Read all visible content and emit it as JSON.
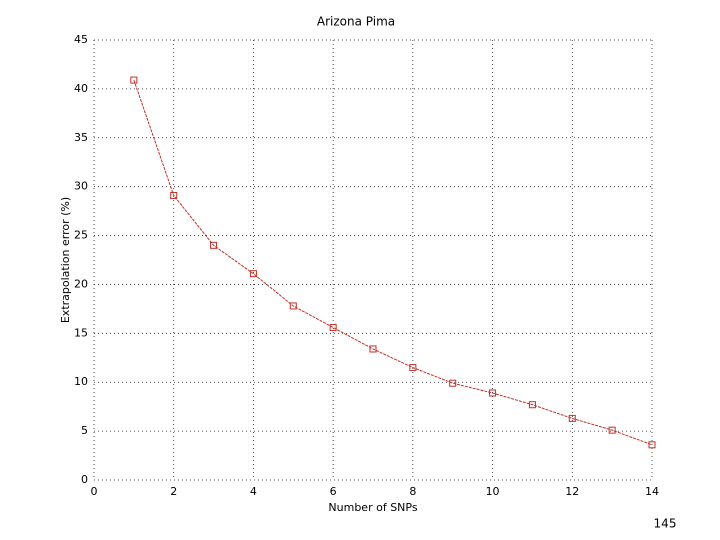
{
  "chart_data": {
    "type": "line",
    "title": "Arizona Pima",
    "x_label": "Number of SNPs",
    "y_label": "Extrapolation error (%)",
    "x": [
      1,
      2,
      3,
      4,
      5,
      6,
      7,
      8,
      9,
      10,
      11,
      12,
      13,
      14
    ],
    "series": [
      {
        "name": "Arizona Pima",
        "color": "#c0302a",
        "values": [
          40.9,
          29.1,
          24.0,
          21.1,
          17.8,
          15.6,
          13.4,
          11.5,
          9.9,
          8.9,
          7.7,
          6.3,
          5.1,
          3.6
        ]
      }
    ],
    "xlim": [
      0,
      14
    ],
    "xticks": [
      0,
      2,
      4,
      6,
      8,
      10,
      12,
      14
    ],
    "ylim": [
      0,
      45
    ],
    "yticks": [
      0,
      5,
      10,
      15,
      20,
      25,
      30,
      35,
      40,
      45
    ],
    "grid": true
  },
  "page_number": "145"
}
